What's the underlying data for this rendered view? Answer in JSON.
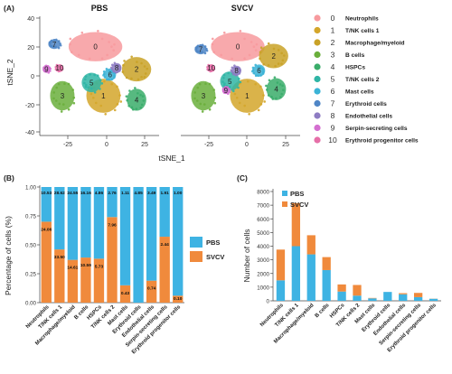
{
  "panels": {
    "a": {
      "letter": "(A)",
      "titles": [
        "PBS",
        "SVCV"
      ],
      "xlabel": "tSNE_1",
      "ylabel": "tSNE_2"
    },
    "b": {
      "letter": "(B)"
    },
    "c": {
      "letter": "(C)"
    }
  },
  "colors": {
    "pbs": "#3eb3e3",
    "svcv": "#f08a3c",
    "clusters": [
      "#f79a9e",
      "#d4a62a",
      "#c9a227",
      "#6aaf3c",
      "#3aad6a",
      "#2fb5a5",
      "#3bb3d6",
      "#4f86c6",
      "#8e7cc3",
      "#d46fd0",
      "#e66fa8"
    ]
  },
  "chart_data": [
    {
      "type": "scatter",
      "panel": "A-left",
      "title": "PBS",
      "xlabel": "tSNE_1",
      "ylabel": "tSNE_2",
      "xticks": [
        "-25",
        "0",
        "25"
      ],
      "yticks": [
        "40",
        "20",
        "0",
        "-20",
        "-40"
      ],
      "xlim": [
        -45,
        45
      ],
      "ylim": [
        -45,
        45
      ],
      "cluster_labels": [
        {
          "id": "0",
          "x": -3,
          "y": 22
        },
        {
          "id": "1",
          "x": 3,
          "y": -15
        },
        {
          "id": "2",
          "x": 28,
          "y": 5
        },
        {
          "id": "3",
          "x": -28,
          "y": -15
        },
        {
          "id": "4",
          "x": 28,
          "y": -18
        },
        {
          "id": "5",
          "x": -6,
          "y": -5
        },
        {
          "id": "6",
          "x": 8,
          "y": 1
        },
        {
          "id": "7",
          "x": -34,
          "y": 24
        },
        {
          "id": "8",
          "x": 13,
          "y": 6
        },
        {
          "id": "9",
          "x": -40,
          "y": 5
        },
        {
          "id": "10",
          "x": -30,
          "y": 6
        }
      ]
    },
    {
      "type": "scatter",
      "panel": "A-right",
      "title": "SVCV",
      "xticks": [
        "-25",
        "0",
        "25"
      ],
      "xlim": [
        -45,
        45
      ],
      "ylim": [
        -45,
        45
      ],
      "cluster_labels": [
        {
          "id": "0",
          "x": -2,
          "y": 22
        },
        {
          "id": "1",
          "x": 5,
          "y": -15
        },
        {
          "id": "2",
          "x": 25,
          "y": 15
        },
        {
          "id": "3",
          "x": -28,
          "y": -15
        },
        {
          "id": "4",
          "x": 27,
          "y": -10
        },
        {
          "id": "5",
          "x": -8,
          "y": -4
        },
        {
          "id": "6",
          "x": 14,
          "y": 4
        },
        {
          "id": "7",
          "x": -30,
          "y": 20
        },
        {
          "id": "8",
          "x": -3,
          "y": 4
        },
        {
          "id": "9",
          "x": -11,
          "y": -11
        },
        {
          "id": "10",
          "x": -22,
          "y": 6
        }
      ]
    },
    {
      "type": "bar",
      "panel": "B",
      "stacked": true,
      "ylabel": "Percentage of cells (%)",
      "ylim": [
        0,
        1
      ],
      "yticks": [
        "0.00",
        "0.25",
        "0.50",
        "0.75",
        "1.00"
      ],
      "categories": [
        "Neutrophils",
        "T/NK cells 1",
        "Macrophage/myeloid",
        "B cells",
        "HSPCs",
        "T/NK cells 2",
        "Mast cells",
        "Erythroid cells",
        "Endothelial cells",
        "Serpin-secreting cells",
        "Erythroid progenitor cells"
      ],
      "series": [
        {
          "name": "SVCV",
          "values": [
            0.7,
            0.46,
            0.37,
            0.39,
            0.38,
            0.74,
            0.15,
            0.0,
            0.19,
            0.57,
            0.06
          ]
        },
        {
          "name": "PBS",
          "values": [
            0.3,
            0.54,
            0.63,
            0.61,
            0.62,
            0.26,
            0.85,
            1.0,
            0.81,
            0.43,
            0.94
          ]
        }
      ],
      "pbs_labels": [
        "10.53",
        "28.62",
        "24.55",
        "16.16",
        "4.86",
        "2.76",
        "1.11",
        "4.85",
        "3.49",
        "1.91",
        "1.00"
      ],
      "svcv_labels": [
        "24.06",
        "33.50",
        "14.61",
        "10.59",
        "5.73",
        "7.96",
        "0.43",
        "",
        "0.74",
        "2.44",
        "0.10"
      ],
      "legend": [
        "PBS",
        "SVCV"
      ]
    },
    {
      "type": "bar",
      "panel": "C",
      "stacked": true,
      "ylabel": "Number of cells",
      "ylim": [
        0,
        8000
      ],
      "yticks": [
        "0",
        "1000",
        "2000",
        "3000",
        "4000",
        "5000",
        "6000",
        "7000",
        "8000"
      ],
      "categories": [
        "Neutrophils",
        "T/NK cells 1",
        "Macrophage/myeloid",
        "B cells",
        "HSPCs",
        "T/NK cells 2",
        "Mast cells",
        "Erythroid cells",
        "Endothelial cells",
        "Serpin-secreting cells",
        "Erythroid progenitor cells"
      ],
      "series": [
        {
          "name": "PBS",
          "values": [
            1500,
            4000,
            3400,
            2250,
            680,
            380,
            180,
            650,
            480,
            270,
            150
          ]
        },
        {
          "name": "SVCV",
          "values": [
            2250,
            3150,
            1400,
            950,
            520,
            780,
            30,
            0,
            80,
            310,
            10
          ]
        }
      ],
      "legend": [
        "PBS",
        "SVCV"
      ]
    }
  ],
  "legend_a": [
    {
      "num": "0",
      "name": "Neutrophils"
    },
    {
      "num": "1",
      "name": "T/NK cells 1"
    },
    {
      "num": "2",
      "name": "Macrophage/myeloid"
    },
    {
      "num": "3",
      "name": "B cells"
    },
    {
      "num": "4",
      "name": "HSPCs"
    },
    {
      "num": "5",
      "name": "T/NK cells 2"
    },
    {
      "num": "6",
      "name": "Mast cells"
    },
    {
      "num": "7",
      "name": "Erythroid cells"
    },
    {
      "num": "8",
      "name": "Endothelial cells"
    },
    {
      "num": "9",
      "name": "Serpin-secreting cells"
    },
    {
      "num": "10",
      "name": "Erythroid progenitor cells"
    }
  ]
}
